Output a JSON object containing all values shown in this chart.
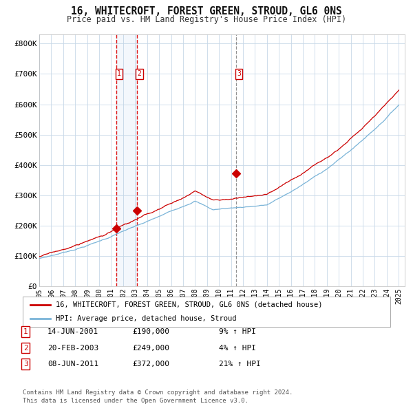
{
  "title": "16, WHITECROFT, FOREST GREEN, STROUD, GL6 0NS",
  "subtitle": "Price paid vs. HM Land Registry's House Price Index (HPI)",
  "ylim": [
    0,
    830000
  ],
  "yticks": [
    0,
    100000,
    200000,
    300000,
    400000,
    500000,
    600000,
    700000,
    800000
  ],
  "ytick_labels": [
    "£0",
    "£100K",
    "£200K",
    "£300K",
    "£400K",
    "£500K",
    "£600K",
    "£700K",
    "£800K"
  ],
  "xtick_years": [
    1995,
    1996,
    1997,
    1998,
    1999,
    2000,
    2001,
    2002,
    2003,
    2004,
    2005,
    2006,
    2007,
    2008,
    2009,
    2010,
    2011,
    2012,
    2013,
    2014,
    2015,
    2016,
    2017,
    2018,
    2019,
    2020,
    2021,
    2022,
    2023,
    2024,
    2025
  ],
  "hpi_color": "#7ab4d8",
  "price_color": "#cc0000",
  "marker_color": "#cc0000",
  "bg_color": "#ffffff",
  "grid_color": "#c8d8e8",
  "legend_label_price": "16, WHITECROFT, FOREST GREEN, STROUD, GL6 0NS (detached house)",
  "legend_label_hpi": "HPI: Average price, detached house, Stroud",
  "transactions": [
    {
      "label": "1",
      "date_year": 2001.45,
      "price": 190000,
      "date_str": "14-JUN-2001",
      "price_str": "£190,000",
      "pct_str": "9% ↑ HPI"
    },
    {
      "label": "2",
      "date_year": 2003.13,
      "price": 249000,
      "date_str": "20-FEB-2003",
      "price_str": "£249,000",
      "pct_str": "4% ↑ HPI"
    },
    {
      "label": "3",
      "date_year": 2011.44,
      "price": 372000,
      "date_str": "08-JUN-2011",
      "price_str": "£372,000",
      "pct_str": "21% ↑ HPI"
    }
  ],
  "footer": "Contains HM Land Registry data © Crown copyright and database right 2024.\nThis data is licensed under the Open Government Licence v3.0."
}
